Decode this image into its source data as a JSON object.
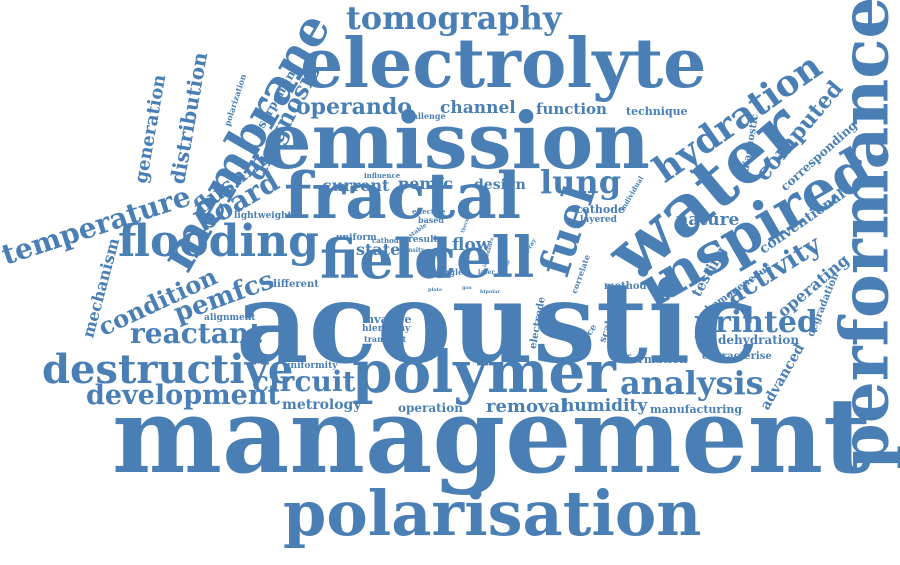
{
  "color": "#4a7fb5",
  "words": {
    "management": "management",
    "acoustic": "acoustic",
    "polarisation": "polarisation",
    "performance": "performance",
    "emission": "emission",
    "electrolyte": "electrolyte",
    "water": "water",
    "fractal": "fractal",
    "polymer": "polymer",
    "inspired": "inspired",
    "field": "field",
    "cell": "cell",
    "flooding": "flooding",
    "membrane": "membrane",
    "tomography": "tomography",
    "destructive": "destructive",
    "hydration": "hydration",
    "fuel": "fuel",
    "analysis": "analysis",
    "development": "development",
    "printed": "printed",
    "temperature": "temperature",
    "lung": "lung",
    "circuit": "circuit",
    "reactant": "reactant",
    "pemfcs": "pemfcs",
    "board": "board",
    "condition": "condition",
    "activity": "activity",
    "computed": "computed",
    "diagnosis": "diagnosis",
    "distribution": "distribution",
    "operando": "operando",
    "generation": "generation",
    "flushing": "flushing",
    "mechanism": "mechanism",
    "removal": "removal",
    "humidity": "humidity",
    "nature": "nature",
    "channel": "channel",
    "function": "function",
    "current": "current",
    "pemfc": "pemfc",
    "design": "design",
    "flow": "flow",
    "metrology": "metrology",
    "operation": "operation",
    "manufacturing": "manufacturing",
    "conventional": "conventional",
    "testing": "testing",
    "operating": "operating",
    "corresponding": "corresponding",
    "advanced": "advanced",
    "dehydration": "dehydration",
    "serpentine": "serpentine",
    "cathode": "cathode",
    "layered": "layered",
    "technique": "technique",
    "invasive": "invasive",
    "hierarchy": "hierarchy",
    "transport": "transport",
    "alignment": "alignment",
    "uniformity": "uniformity",
    "formation": "formation",
    "characterise": "characterise",
    "homogeneous": "homogeneous",
    "degradation": "degradation",
    "method": "method",
    "different": "different",
    "state": "state",
    "uniform": "uniform",
    "lightweight": "lightweight",
    "challenge": "challenge",
    "diagnostic": "diagnostic",
    "scalable": "scalable",
    "electrode": "electrode",
    "presence": "presence",
    "correlate": "correlate",
    "polarization": "polarization",
    "influence": "influence",
    "effective": "effective",
    "based": "based",
    "cathodic": "cathodic",
    "result": "result",
    "density": "density",
    "single": "single",
    "laser": "laser",
    "individual": "individual",
    "computed_small": "computed",
    "x_ray": "X-ray",
    "impedance": "impedance",
    "plate": "plate",
    "bipolar": "bipolar",
    "stable": "stable",
    "thermal": "thermal",
    "rib": "rib",
    "gas": "gas"
  }
}
